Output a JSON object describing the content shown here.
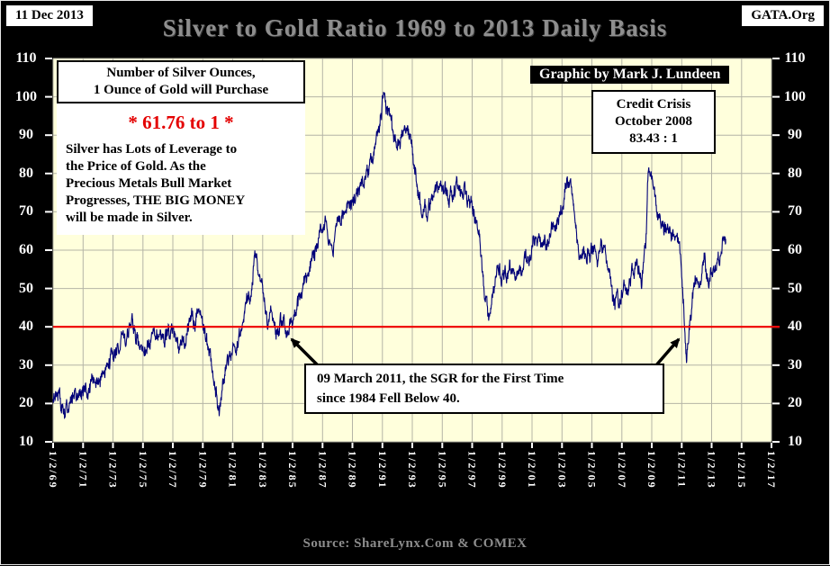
{
  "header": {
    "date_badge": "11 Dec 2013",
    "brand_badge": "GATA.Org",
    "title": "Silver to Gold Ratio 1969 to 2013 Daily Basis"
  },
  "annotations": {
    "info_box": "Number of Silver Ounces,\n1 Ounce of Gold will Purchase",
    "ratio_highlight": "* 61.76 to 1 *",
    "leverage_text": "Silver has Lots of Leverage to\nthe Price of Gold.  As the\nPrecious Metals Bull Market\nProgresses,  THE BIG MONEY\nwill be made in Silver.",
    "graphic_credit": "Graphic by Mark J. Lundeen",
    "credit_line1": "Credit Crisis",
    "credit_line2": "October 2008",
    "credit_line3": "83.43 : 1",
    "sgr_note": "09 March 2011, the SGR for the First Time\nsince 1984 Fell Below 40."
  },
  "footer": {
    "source": "Source: ShareLynx.Com & COMEX"
  },
  "chart_data": {
    "type": "line",
    "title": "Silver to Gold Ratio 1969 to 2013 Daily Basis",
    "xlabel": "",
    "ylabel": "",
    "ylim": [
      10,
      110
    ],
    "y_ticks": [
      110,
      100,
      90,
      80,
      70,
      60,
      50,
      40,
      30,
      20,
      10
    ],
    "x_domain": [
      1969,
      2017
    ],
    "x_ticks": [
      1969,
      1971,
      1973,
      1975,
      1977,
      1979,
      1981,
      1983,
      1985,
      1987,
      1989,
      1991,
      1993,
      1995,
      1997,
      1999,
      2001,
      2003,
      2005,
      2007,
      2009,
      2011,
      2013,
      2015,
      2017
    ],
    "x_tick_labels": [
      "1/2/69",
      "1/2/71",
      "1/2/73",
      "1/2/75",
      "1/2/77",
      "1/2/79",
      "1/2/81",
      "1/2/83",
      "1/2/85",
      "1/2/87",
      "1/2/89",
      "1/2/91",
      "1/2/93",
      "1/2/95",
      "1/2/97",
      "1/2/99",
      "1/2/01",
      "1/2/03",
      "1/2/05",
      "1/2/07",
      "1/2/09",
      "1/2/11",
      "1/2/13",
      "1/2/15",
      "1/2/17"
    ],
    "grid": true,
    "legend": "none",
    "plot_bg": "#ffffdc",
    "grid_color": "#b4b4a6",
    "reference_line": {
      "y": 40,
      "color": "#ee0000"
    },
    "last_value": 61.76,
    "series": [
      {
        "name": "Silver to Gold Ratio (daily)",
        "color": "#000078",
        "anchor_points": [
          [
            1969.0,
            21
          ],
          [
            1969.3,
            24
          ],
          [
            1969.6,
            19
          ],
          [
            1970.0,
            18
          ],
          [
            1970.4,
            21.5
          ],
          [
            1970.8,
            24
          ],
          [
            1971.2,
            23
          ],
          [
            1971.6,
            25
          ],
          [
            1972.0,
            26.5
          ],
          [
            1972.5,
            30
          ],
          [
            1973.0,
            33
          ],
          [
            1973.5,
            37
          ],
          [
            1974.0,
            39.5
          ],
          [
            1974.3,
            41.5
          ],
          [
            1974.7,
            36
          ],
          [
            1975.0,
            33
          ],
          [
            1975.4,
            36
          ],
          [
            1975.8,
            38
          ],
          [
            1976.2,
            36
          ],
          [
            1976.6,
            39
          ],
          [
            1977.0,
            38
          ],
          [
            1977.4,
            36.5
          ],
          [
            1977.8,
            37.5
          ],
          [
            1978.2,
            39.5
          ],
          [
            1978.7,
            43.5
          ],
          [
            1979.1,
            39
          ],
          [
            1979.5,
            33
          ],
          [
            1979.8,
            25
          ],
          [
            1980.1,
            16.8
          ],
          [
            1980.35,
            25
          ],
          [
            1980.6,
            30
          ],
          [
            1980.9,
            33
          ],
          [
            1981.2,
            36
          ],
          [
            1981.6,
            40
          ],
          [
            1982.0,
            46
          ],
          [
            1982.5,
            56.5
          ],
          [
            1982.8,
            53
          ],
          [
            1983.1,
            47
          ],
          [
            1983.4,
            42.5
          ],
          [
            1983.8,
            39.5
          ],
          [
            1984.2,
            41
          ],
          [
            1984.6,
            38.5
          ],
          [
            1984.9,
            42
          ],
          [
            1985.3,
            45
          ],
          [
            1985.7,
            49
          ],
          [
            1986.1,
            55
          ],
          [
            1986.5,
            61
          ],
          [
            1986.9,
            64
          ],
          [
            1987.2,
            66.5
          ],
          [
            1987.5,
            59
          ],
          [
            1987.8,
            63.5
          ],
          [
            1988.2,
            66.5
          ],
          [
            1988.6,
            69.5
          ],
          [
            1989.0,
            72.5
          ],
          [
            1989.5,
            76.5
          ],
          [
            1990.0,
            80
          ],
          [
            1990.4,
            86
          ],
          [
            1990.8,
            92
          ],
          [
            1991.1,
            100.5
          ],
          [
            1991.4,
            95
          ],
          [
            1991.7,
            91
          ],
          [
            1992.0,
            88
          ],
          [
            1992.4,
            93
          ],
          [
            1992.8,
            90
          ],
          [
            1993.1,
            83
          ],
          [
            1993.4,
            74
          ],
          [
            1993.8,
            70
          ],
          [
            1994.2,
            73
          ],
          [
            1994.6,
            76
          ],
          [
            1995.0,
            78
          ],
          [
            1995.4,
            74
          ],
          [
            1995.8,
            75
          ],
          [
            1996.2,
            76
          ],
          [
            1996.6,
            74
          ],
          [
            1997.0,
            71
          ],
          [
            1997.4,
            64
          ],
          [
            1997.8,
            52
          ],
          [
            1998.1,
            41.5
          ],
          [
            1998.4,
            48
          ],
          [
            1998.7,
            54
          ],
          [
            1999.0,
            53
          ],
          [
            1999.4,
            55.5
          ],
          [
            1999.8,
            52
          ],
          [
            2000.2,
            55
          ],
          [
            2000.6,
            57
          ],
          [
            2001.0,
            60
          ],
          [
            2001.4,
            62
          ],
          [
            2001.8,
            63
          ],
          [
            2002.2,
            64
          ],
          [
            2002.6,
            67
          ],
          [
            2003.0,
            72
          ],
          [
            2003.35,
            79.5
          ],
          [
            2003.7,
            73
          ],
          [
            2004.0,
            63
          ],
          [
            2004.3,
            55.5
          ],
          [
            2004.7,
            61
          ],
          [
            2005.0,
            60
          ],
          [
            2005.4,
            57
          ],
          [
            2005.8,
            61
          ],
          [
            2006.1,
            55
          ],
          [
            2006.4,
            45.5
          ],
          [
            2006.8,
            47.5
          ],
          [
            2007.2,
            50
          ],
          [
            2007.6,
            52
          ],
          [
            2008.0,
            55
          ],
          [
            2008.3,
            51
          ],
          [
            2008.6,
            61
          ],
          [
            2008.8,
            83.4
          ],
          [
            2009.0,
            77
          ],
          [
            2009.4,
            69
          ],
          [
            2009.8,
            64
          ],
          [
            2010.2,
            65
          ],
          [
            2010.6,
            63
          ],
          [
            2010.9,
            58
          ],
          [
            2011.1,
            47
          ],
          [
            2011.33,
            31.5
          ],
          [
            2011.6,
            42
          ],
          [
            2011.9,
            51
          ],
          [
            2012.2,
            52
          ],
          [
            2012.5,
            57
          ],
          [
            2012.8,
            53
          ],
          [
            2013.0,
            55
          ],
          [
            2013.3,
            57
          ],
          [
            2013.6,
            60
          ],
          [
            2013.8,
            65.5
          ],
          [
            2013.94,
            61.76
          ]
        ]
      }
    ]
  }
}
